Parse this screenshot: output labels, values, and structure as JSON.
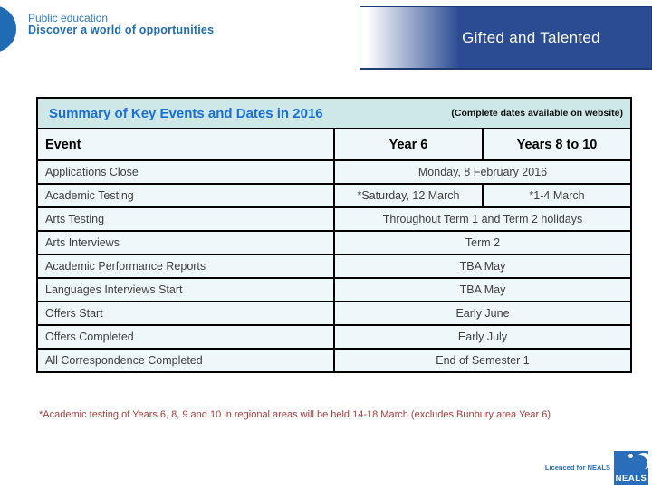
{
  "brand": {
    "line1": "Public education",
    "line2": "Discover a world of opportunities"
  },
  "header": {
    "title": "Gifted and Talented"
  },
  "table": {
    "title": "Summary of Key Events and Dates in 2016",
    "title_note": "(Complete dates available on website)",
    "columns": [
      "Event",
      "Year 6",
      "Years 8 to 10"
    ],
    "rows": [
      {
        "event": "Applications Close",
        "cells": [
          "Monday, 8 February 2016"
        ]
      },
      {
        "event": "Academic Testing",
        "cells": [
          "*Saturday, 12 March",
          "*1-4 March"
        ]
      },
      {
        "event": "Arts Testing",
        "cells": [
          "Throughout Term 1 and Term 2 holidays"
        ]
      },
      {
        "event": "Arts Interviews",
        "cells": [
          "Term 2"
        ]
      },
      {
        "event": "Academic Performance Reports",
        "cells": [
          "TBA May"
        ]
      },
      {
        "event": "Languages Interviews Start",
        "cells": [
          "TBA May"
        ]
      },
      {
        "event": "Offers Start",
        "cells": [
          "Early June"
        ]
      },
      {
        "event": "Offers Completed",
        "cells": [
          "Early July"
        ]
      },
      {
        "event": "All Correspondence Completed",
        "cells": [
          "End of Semester 1"
        ]
      }
    ]
  },
  "footnote": "*Academic testing of Years 6, 8, 9 and 10 in regional areas will be held 14-18 March (excludes Bunbury area Year 6)",
  "footer": {
    "licence": "Licenced for NEALS",
    "logo_text": "NEALS"
  },
  "colors": {
    "brand_blue": "#1f6cb4",
    "banner_blue": "#2b4c93",
    "table_title_blue": "#1a6fd4",
    "title_bar_bg": "#cde8e6",
    "cell_bg": "#eef7fa",
    "footnote_red": "#a33c3c",
    "neals_blue": "#2a6db8"
  }
}
